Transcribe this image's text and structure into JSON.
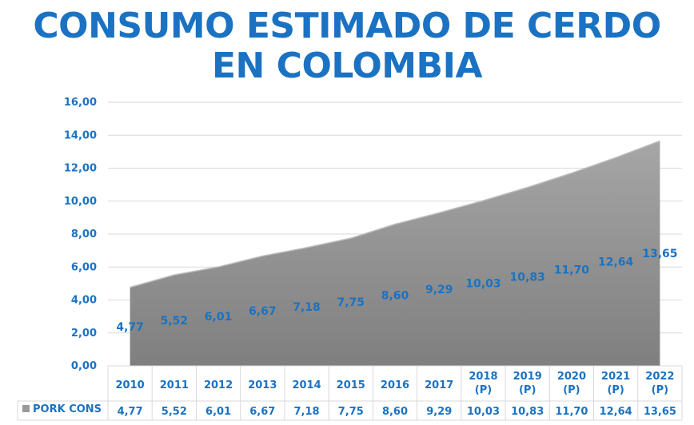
{
  "title": {
    "line1": "CONSUMO ESTIMADO DE CERDO",
    "line2": "EN COLOMBIA"
  },
  "chart_data": {
    "type": "area",
    "categories": [
      [
        "2010"
      ],
      [
        "2011"
      ],
      [
        "2012"
      ],
      [
        "2013"
      ],
      [
        "2014"
      ],
      [
        "2015"
      ],
      [
        "2016"
      ],
      [
        "2017"
      ],
      [
        "2018",
        "(P)"
      ],
      [
        "2019",
        "(P)"
      ],
      [
        "2020",
        "(P)"
      ],
      [
        "2021",
        "(P)"
      ],
      [
        "2022",
        "(P)"
      ]
    ],
    "series": [
      {
        "name": "PORK CONS",
        "values": [
          4.77,
          5.52,
          6.01,
          6.67,
          7.18,
          7.75,
          8.6,
          9.29,
          10.03,
          10.83,
          11.7,
          12.64,
          13.65
        ],
        "labels": [
          "4,77",
          "5,52",
          "6,01",
          "6,67",
          "7,18",
          "7,75",
          "8,60",
          "9,29",
          "10,03",
          "10,83",
          "11,70",
          "12,64",
          "13,65"
        ],
        "color": "#9a9a9a"
      }
    ],
    "yticks": [
      "0,00",
      "2,00",
      "4,00",
      "6,00",
      "8,00",
      "10,00",
      "12,00",
      "14,00",
      "16,00"
    ],
    "ylim": [
      0,
      16
    ],
    "grid": true,
    "data_table": true,
    "legend": "data-table"
  }
}
